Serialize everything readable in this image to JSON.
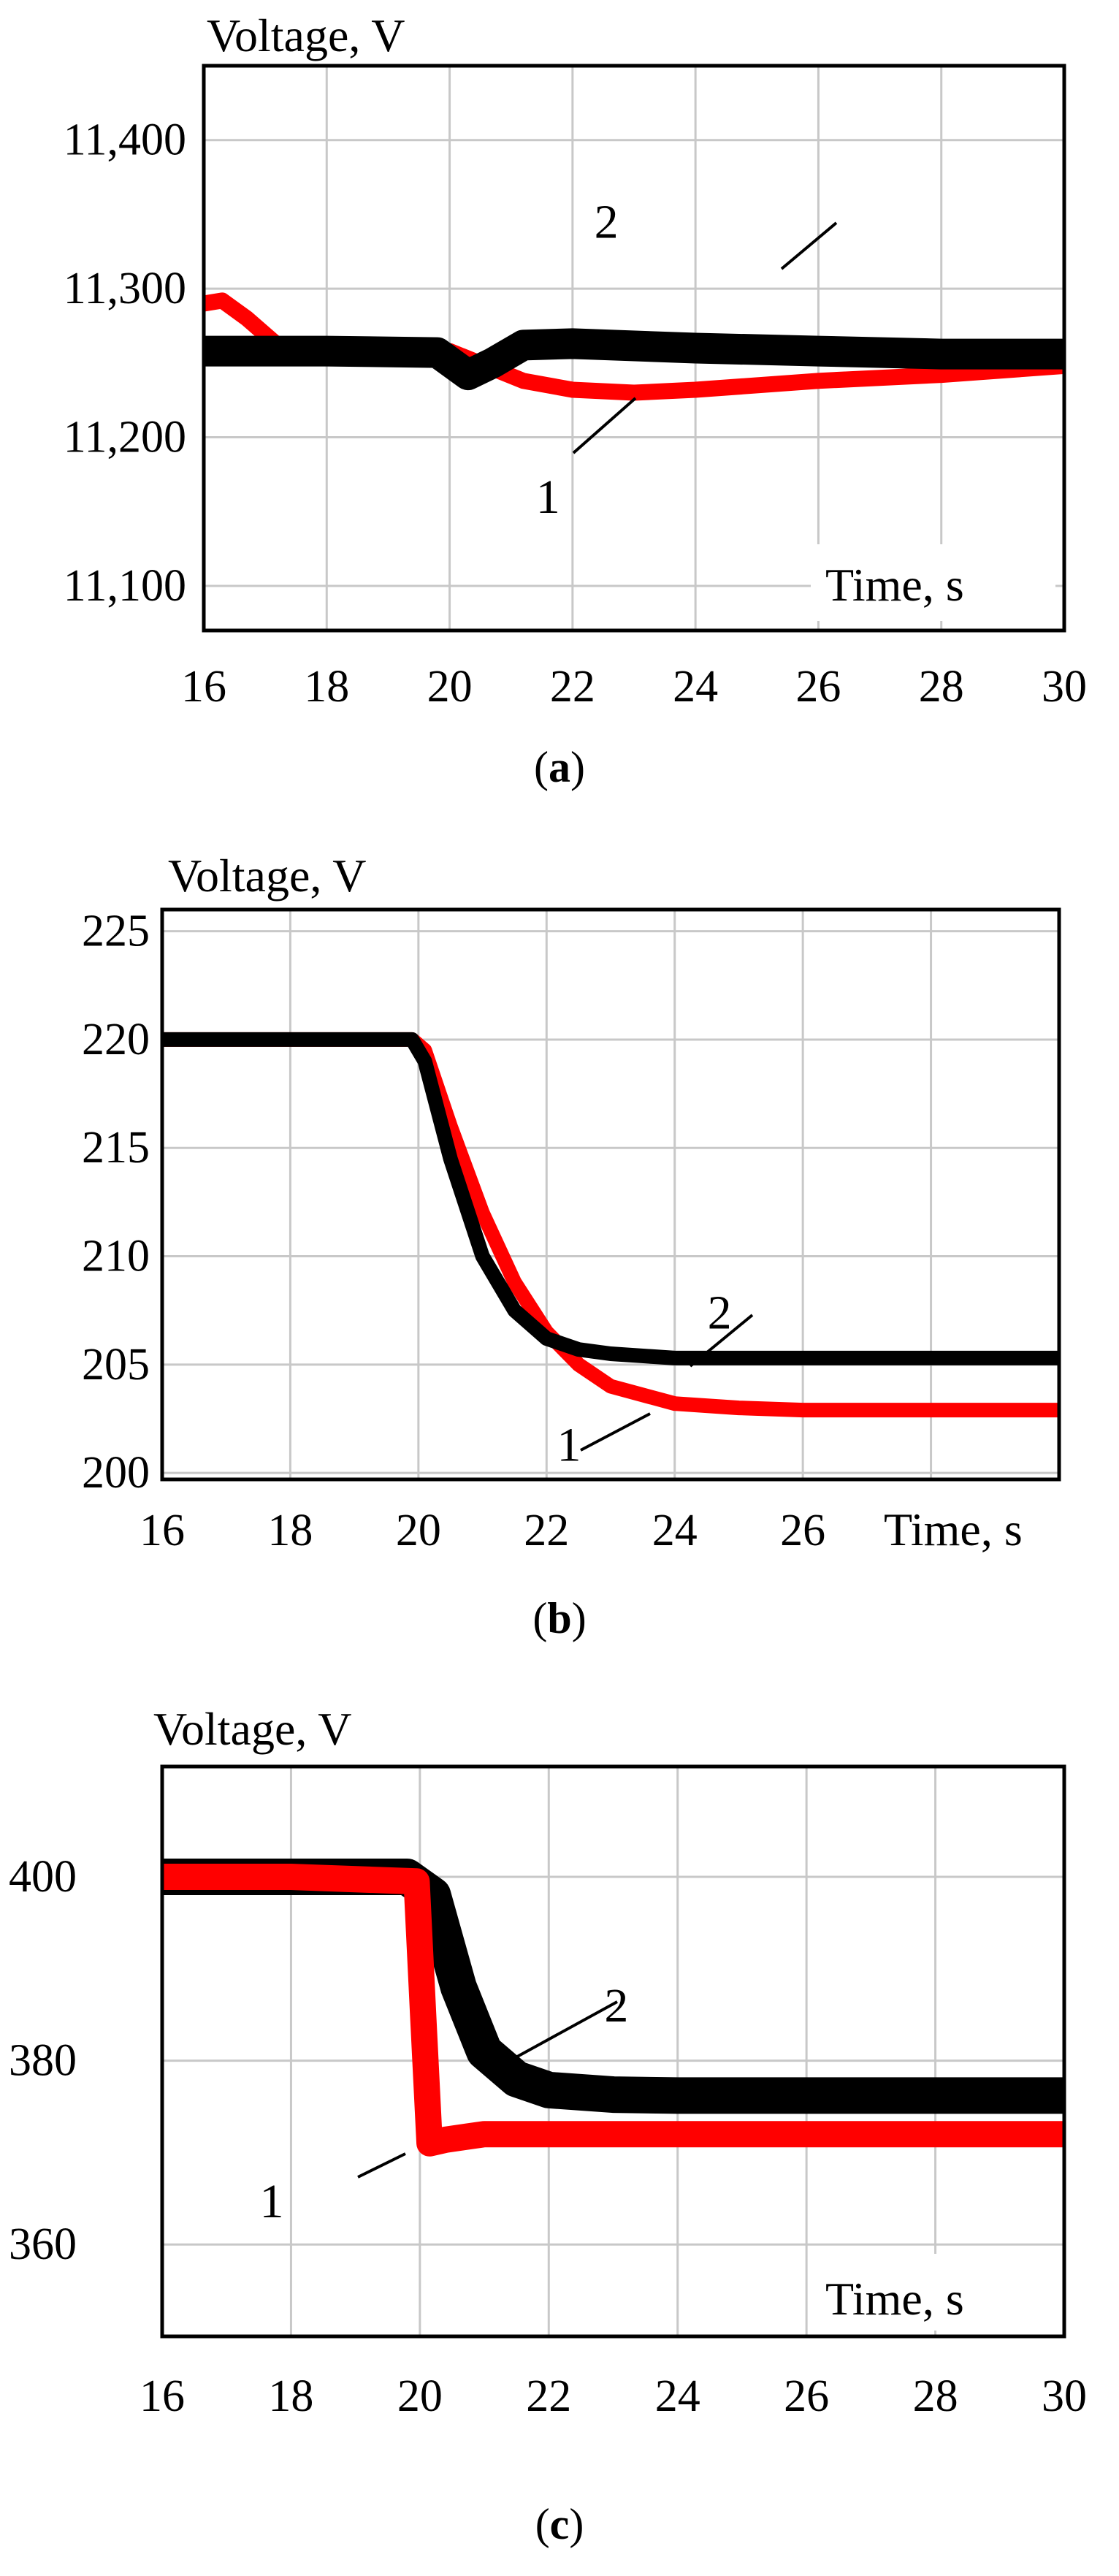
{
  "chart_data": [
    {
      "type": "line",
      "panel_label": "a",
      "title": "Voltage, V",
      "xlabel": "Time, s",
      "xlim": [
        16,
        30
      ],
      "ylim": [
        11070,
        11450
      ],
      "x_ticks": [
        "16",
        "18",
        "20",
        "22",
        "24",
        "26",
        "28",
        "30"
      ],
      "y_ticks": [
        "11,100",
        "11,200",
        "11,300",
        "11,400"
      ],
      "x_tick_values": [
        16,
        18,
        20,
        22,
        24,
        26,
        28,
        30
      ],
      "y_tick_values": [
        11100,
        11200,
        11300,
        11400
      ],
      "grid": true,
      "series": [
        {
          "name": "1",
          "color": "#ff0000",
          "band": 22,
          "x": [
            16,
            16.3,
            16.7,
            17.2,
            20,
            20.6,
            21.2,
            22,
            23,
            24,
            26,
            28,
            30
          ],
          "y": [
            11290,
            11292,
            11280,
            11262,
            11258,
            11248,
            11238,
            11232,
            11230,
            11232,
            11238,
            11242,
            11248
          ]
        },
        {
          "name": "2",
          "color": "#000000",
          "band": 42,
          "x": [
            16,
            18,
            19.8,
            20.3,
            20.7,
            21.2,
            22,
            24,
            26,
            28,
            30
          ],
          "y": [
            11258,
            11258,
            11257,
            11242,
            11250,
            11262,
            11263,
            11260,
            11258,
            11256,
            11256
          ]
        }
      ],
      "annotations": [
        {
          "text": "2",
          "x": 22.55,
          "y": 11345
        },
        {
          "text": "1",
          "x": 21.6,
          "y": 11160
        }
      ]
    },
    {
      "type": "line",
      "panel_label": "b",
      "title": "Voltage, V",
      "xlabel": "Time, s",
      "xlim": [
        16,
        30
      ],
      "ylim": [
        199.7,
        226
      ],
      "x_ticks": [
        "16",
        "18",
        "20",
        "22",
        "24",
        "26"
      ],
      "y_ticks": [
        "200",
        "205",
        "210",
        "215",
        "220",
        "225"
      ],
      "x_tick_values": [
        16,
        18,
        20,
        22,
        24,
        26
      ],
      "y_tick_values": [
        200,
        205,
        210,
        215,
        220,
        225
      ],
      "grid": true,
      "series": [
        {
          "name": "1",
          "color": "#ff0000",
          "band": 20,
          "x": [
            16,
            19.9,
            20.1,
            20.5,
            21,
            21.5,
            22,
            22.5,
            23,
            24,
            25,
            26,
            28,
            30
          ],
          "y": [
            220,
            220,
            219.5,
            216,
            212,
            208.8,
            206.5,
            205,
            204,
            203.2,
            203,
            202.9,
            202.9,
            202.9
          ]
        },
        {
          "name": "2",
          "color": "#000000",
          "band": 20,
          "x": [
            16,
            19.9,
            20.1,
            20.5,
            21,
            21.5,
            22,
            22.5,
            23,
            24,
            26,
            28,
            30
          ],
          "y": [
            220,
            220,
            219,
            214.5,
            210,
            207.5,
            206.2,
            205.7,
            205.5,
            205.3,
            205.3,
            205.3,
            205.3
          ]
        }
      ],
      "annotations": [
        {
          "text": "2",
          "x": 24.7,
          "y": 207.4
        },
        {
          "text": "1",
          "x": 22.35,
          "y": 201.3
        }
      ]
    },
    {
      "type": "line",
      "panel_label": "c",
      "title": "Voltage, V",
      "xlabel": "Time, s",
      "xlim": [
        16,
        30
      ],
      "ylim": [
        350,
        412
      ],
      "x_ticks": [
        "16",
        "18",
        "20",
        "22",
        "24",
        "26",
        "28",
        "30"
      ],
      "y_ticks": [
        "360",
        "380",
        "400"
      ],
      "x_tick_values": [
        16,
        18,
        20,
        22,
        24,
        26,
        28,
        30
      ],
      "y_tick_values": [
        360,
        380,
        400
      ],
      "grid": true,
      "series": [
        {
          "name": "2",
          "color": "#000000",
          "band": 50,
          "x": [
            16,
            18,
            19.8,
            20.2,
            20.6,
            21,
            21.5,
            22,
            23,
            24,
            26,
            28,
            30
          ],
          "y": [
            400,
            400,
            400,
            398,
            388,
            381,
            378,
            376.8,
            376.3,
            376.2,
            376.2,
            376.2,
            376.2
          ]
        },
        {
          "name": "1",
          "color": "#ff0000",
          "band": 36,
          "x": [
            16,
            18,
            19.95,
            20.05,
            20.15,
            20.4,
            21,
            22,
            24,
            26,
            28,
            30
          ],
          "y": [
            400,
            400,
            399.5,
            385,
            371,
            371.4,
            372,
            372,
            372,
            372,
            372,
            372
          ]
        }
      ],
      "annotations": [
        {
          "text": "2",
          "x": 23.05,
          "y": 386
        },
        {
          "text": "1",
          "x": 17.7,
          "y": 364.7
        }
      ]
    }
  ]
}
